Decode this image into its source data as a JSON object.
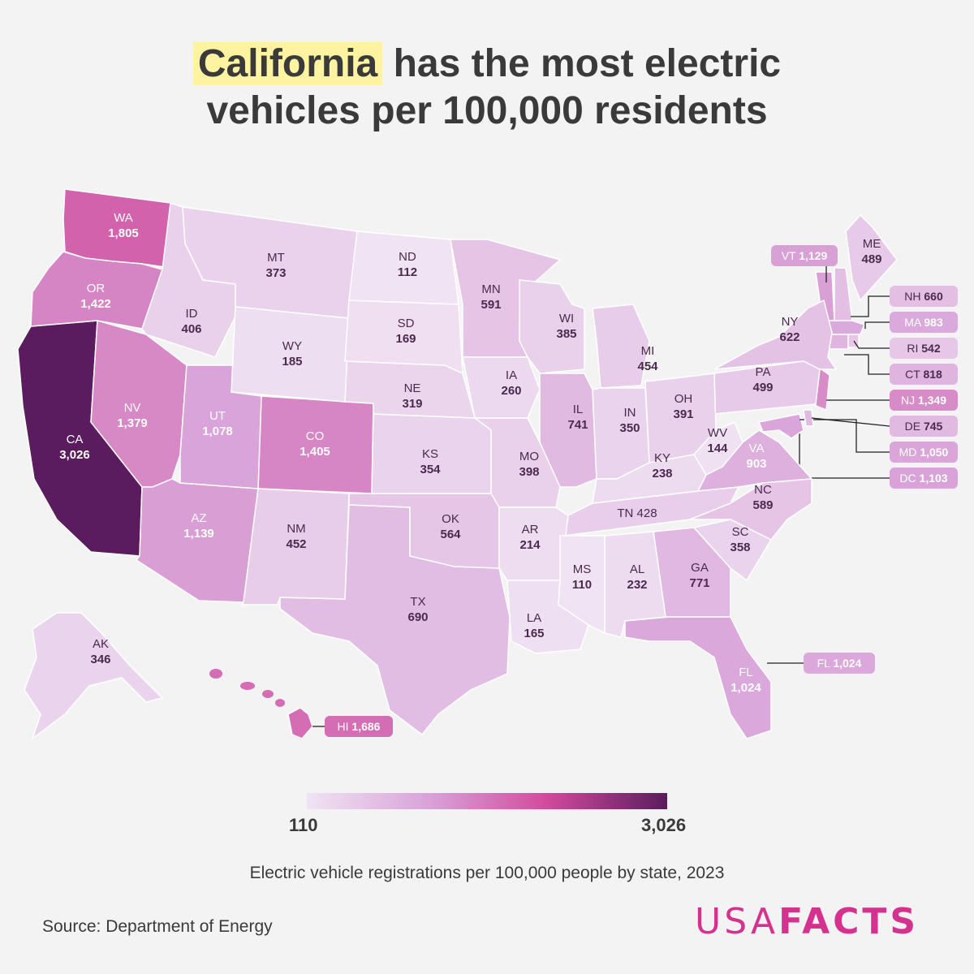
{
  "title": {
    "highlight": "California",
    "rest_line1": " has the most electric",
    "line2": "vehicles per 100,000 residents"
  },
  "legend": {
    "min": "110",
    "max": "3,026",
    "min_value": 110,
    "max_value": 3026,
    "colors": [
      "#f0e3f3",
      "#d9a4d9",
      "#d14b9c",
      "#5a1c5e"
    ]
  },
  "subtitle": "Electric vehicle registrations per 100,000 people by state, 2023",
  "source": "Source: Department of Energy",
  "logo": {
    "part1": "USA",
    "part2": "FACTS"
  },
  "chart_data": {
    "type": "choropleth",
    "unit": "EV registrations per 100,000 people",
    "states": [
      {
        "abbr": "CA",
        "label": "3,026",
        "value": 3026
      },
      {
        "abbr": "WA",
        "label": "1,805",
        "value": 1805
      },
      {
        "abbr": "HI",
        "label": "1,686",
        "value": 1686
      },
      {
        "abbr": "OR",
        "label": "1,422",
        "value": 1422
      },
      {
        "abbr": "CO",
        "label": "1,405",
        "value": 1405
      },
      {
        "abbr": "NV",
        "label": "1,379",
        "value": 1379
      },
      {
        "abbr": "NJ",
        "label": "1,349",
        "value": 1349
      },
      {
        "abbr": "AZ",
        "label": "1,139",
        "value": 1139
      },
      {
        "abbr": "VT",
        "label": "1,129",
        "value": 1129
      },
      {
        "abbr": "DC",
        "label": "1,103",
        "value": 1103
      },
      {
        "abbr": "UT",
        "label": "1,078",
        "value": 1078
      },
      {
        "abbr": "MD",
        "label": "1,050",
        "value": 1050
      },
      {
        "abbr": "FL",
        "label": "1,024",
        "value": 1024
      },
      {
        "abbr": "MA",
        "label": "983",
        "value": 983
      },
      {
        "abbr": "VA",
        "label": "903",
        "value": 903
      },
      {
        "abbr": "CT",
        "label": "818",
        "value": 818
      },
      {
        "abbr": "GA",
        "label": "771",
        "value": 771
      },
      {
        "abbr": "DE",
        "label": "745",
        "value": 745
      },
      {
        "abbr": "IL",
        "label": "741",
        "value": 741
      },
      {
        "abbr": "TX",
        "label": "690",
        "value": 690
      },
      {
        "abbr": "NH",
        "label": "660",
        "value": 660
      },
      {
        "abbr": "NY",
        "label": "622",
        "value": 622
      },
      {
        "abbr": "MN",
        "label": "591",
        "value": 591
      },
      {
        "abbr": "NC",
        "label": "589",
        "value": 589
      },
      {
        "abbr": "OK",
        "label": "564",
        "value": 564
      },
      {
        "abbr": "RI",
        "label": "542",
        "value": 542
      },
      {
        "abbr": "PA",
        "label": "499",
        "value": 499
      },
      {
        "abbr": "ME",
        "label": "489",
        "value": 489
      },
      {
        "abbr": "MI",
        "label": "454",
        "value": 454
      },
      {
        "abbr": "NM",
        "label": "452",
        "value": 452
      },
      {
        "abbr": "TN",
        "label": "428",
        "value": 428
      },
      {
        "abbr": "ID",
        "label": "406",
        "value": 406
      },
      {
        "abbr": "MO",
        "label": "398",
        "value": 398
      },
      {
        "abbr": "OH",
        "label": "391",
        "value": 391
      },
      {
        "abbr": "WI",
        "label": "385",
        "value": 385
      },
      {
        "abbr": "MT",
        "label": "373",
        "value": 373
      },
      {
        "abbr": "SC",
        "label": "358",
        "value": 358
      },
      {
        "abbr": "KS",
        "label": "354",
        "value": 354
      },
      {
        "abbr": "IN",
        "label": "350",
        "value": 350
      },
      {
        "abbr": "AK",
        "label": "346",
        "value": 346
      },
      {
        "abbr": "NE",
        "label": "319",
        "value": 319
      },
      {
        "abbr": "IA",
        "label": "260",
        "value": 260
      },
      {
        "abbr": "KY",
        "label": "238",
        "value": 238
      },
      {
        "abbr": "AL",
        "label": "232",
        "value": 232
      },
      {
        "abbr": "AR",
        "label": "214",
        "value": 214
      },
      {
        "abbr": "WY",
        "label": "185",
        "value": 185
      },
      {
        "abbr": "SD",
        "label": "169",
        "value": 169
      },
      {
        "abbr": "LA",
        "label": "165",
        "value": 165
      },
      {
        "abbr": "WV",
        "label": "144",
        "value": 144
      },
      {
        "abbr": "ND",
        "label": "112",
        "value": 112
      },
      {
        "abbr": "MS",
        "label": "110",
        "value": 110
      }
    ]
  }
}
